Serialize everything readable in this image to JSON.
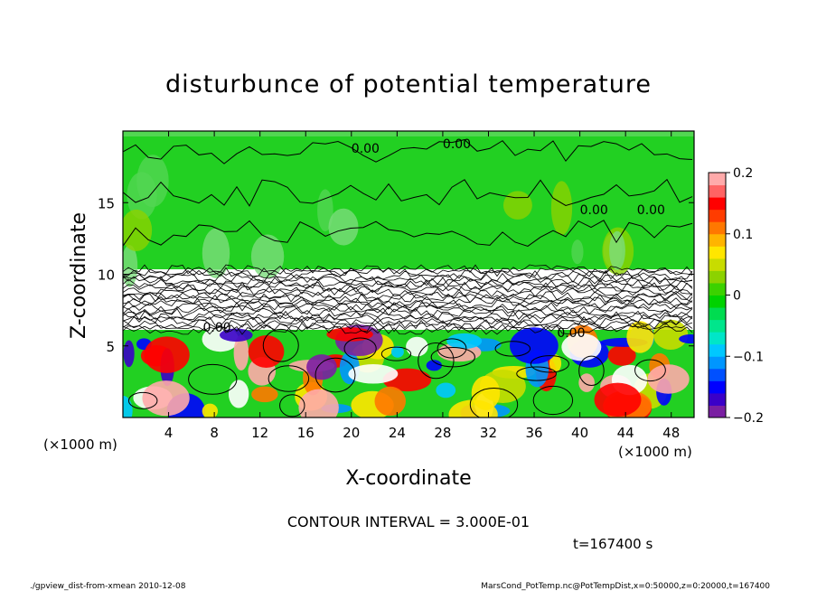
{
  "chart_data": {
    "type": "heatmap",
    "title": "disturbunce of potential temperature",
    "xlabel": "X-coordinate",
    "ylabel": "Z-coordinate",
    "x_unit": "(×1000 m)",
    "y_unit": "(×1000 m)",
    "xlim": [
      0,
      50
    ],
    "ylim": [
      0,
      20
    ],
    "x_ticks": [
      4,
      8,
      12,
      16,
      20,
      24,
      28,
      32,
      36,
      40,
      44,
      48
    ],
    "y_ticks": [
      5,
      10,
      15
    ],
    "colorbar": {
      "range": [
        -0.2,
        0.2
      ],
      "tick_labels": [
        "0.2",
        "0.1",
        "0",
        "−0.1",
        "−0.2"
      ],
      "tick_values": [
        0.2,
        0.1,
        0,
        -0.1,
        -0.2
      ],
      "colors": [
        "#7a1fa2",
        "#3a00c8",
        "#0000ff",
        "#0050ff",
        "#0096ff",
        "#00c8ff",
        "#00e6c8",
        "#00e68c",
        "#00dc50",
        "#00d200",
        "#3cd200",
        "#8cd200",
        "#c8dc00",
        "#ffe600",
        "#ffb400",
        "#ff7800",
        "#ff3c00",
        "#ff0000",
        "#ff6464",
        "#ffaaaa"
      ]
    },
    "contour_labels": [
      "0.00",
      "0.00",
      "0.00",
      "0.00",
      "0.00",
      "0.00"
    ],
    "grid": false
  },
  "annotations": {
    "contour_interval": "CONTOUR INTERVAL = 3.000E-01",
    "time": "t=167400  s",
    "footer_left": "./gpview_dist-from-xmean   2010-12-08",
    "footer_right": "MarsCond_PotTemp.nc@PotTempDist,x=0:50000,z=0:20000,t=167400"
  }
}
